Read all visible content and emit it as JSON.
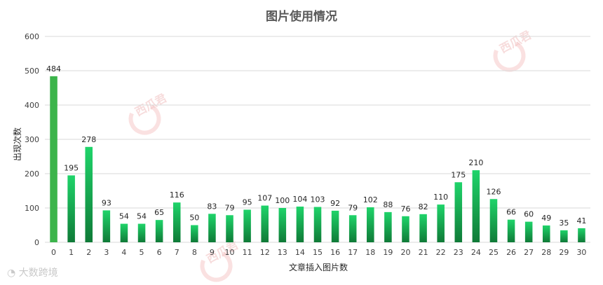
{
  "chart_data": {
    "type": "bar",
    "title": "图片使用情况",
    "xlabel": "文章插入图片数",
    "ylabel": "出现次数",
    "ylim": [
      0,
      600
    ],
    "yticks": [
      0,
      100,
      200,
      300,
      400,
      500,
      600
    ],
    "grid": true,
    "categories": [
      "0",
      "1",
      "2",
      "3",
      "4",
      "5",
      "6",
      "7",
      "8",
      "9",
      "10",
      "11",
      "12",
      "13",
      "14",
      "15",
      "16",
      "17",
      "18",
      "19",
      "20",
      "21",
      "22",
      "23",
      "24",
      "25",
      "26",
      "27",
      "28",
      "29",
      "30"
    ],
    "values": [
      484,
      195,
      278,
      93,
      54,
      54,
      65,
      116,
      50,
      83,
      79,
      95,
      107,
      100,
      104,
      103,
      92,
      79,
      102,
      88,
      76,
      82,
      110,
      175,
      210,
      126,
      66,
      60,
      49,
      35,
      41
    ],
    "colors": {
      "first_bar": "#3cb44b",
      "bar_top": "#1fd46a",
      "bar_bottom": "#0f7a37"
    }
  },
  "watermark": {
    "text": "西瓜君"
  },
  "footer": {
    "logo_text": "大数跨境"
  }
}
